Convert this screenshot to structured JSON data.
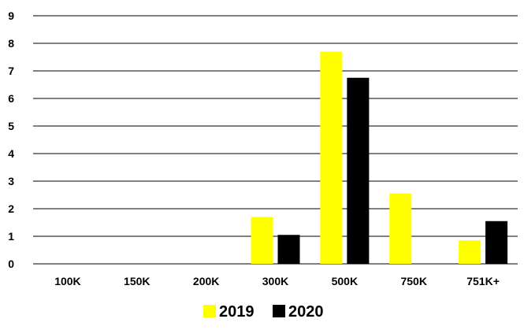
{
  "chart_data": {
    "type": "bar",
    "title": "",
    "xlabel": "",
    "ylabel": "",
    "categories": [
      "100K",
      "150K",
      "200K",
      "300K",
      "500K",
      "750K",
      "751K+"
    ],
    "series": [
      {
        "name": "2019",
        "color": "#ffff00",
        "values": [
          0,
          0,
          0,
          1.7,
          7.7,
          2.55,
          0.85
        ]
      },
      {
        "name": "2020",
        "color": "#000000",
        "values": [
          0,
          0,
          0,
          1.05,
          6.75,
          0,
          1.55
        ]
      }
    ],
    "ylim": [
      0,
      9
    ],
    "yticks": [
      "0",
      "1",
      "2",
      "3",
      "4",
      "5",
      "6",
      "7",
      "8",
      "9"
    ],
    "grid": true,
    "legend_position": "bottom-center"
  }
}
